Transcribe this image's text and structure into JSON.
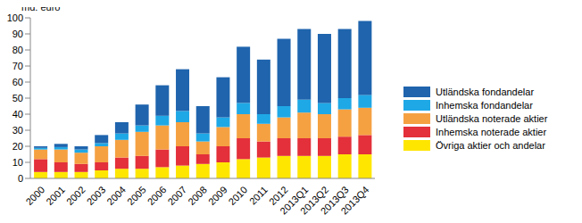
{
  "chart_data": {
    "type": "bar",
    "stacked": true,
    "y_label": "md. euro",
    "categories": [
      "2000",
      "2001",
      "2002",
      "2003",
      "2004",
      "2005",
      "2006",
      "2007",
      "2008",
      "2009",
      "2010",
      "2011",
      "2012",
      "2013Q1",
      "2013Q2",
      "2013Q3",
      "2013Q4"
    ],
    "series": [
      {
        "name": "Utländska fondandelar",
        "color": "#1f64ad",
        "values": [
          1,
          2,
          2,
          5,
          7,
          13,
          19,
          26,
          17,
          25,
          35,
          34,
          42,
          44,
          43,
          43,
          46
        ]
      },
      {
        "name": "Inhemska fondandelar",
        "color": "#1fa8e6",
        "values": [
          1,
          1.5,
          2,
          2,
          4,
          4,
          6,
          7,
          5,
          6,
          7,
          6,
          7,
          8,
          7,
          7,
          8
        ]
      },
      {
        "name": "Utländska noterade aktier",
        "color": "#f5a142",
        "values": [
          6,
          8,
          7,
          10,
          11,
          15,
          15,
          15,
          8,
          12,
          15,
          11,
          13,
          16,
          15,
          17,
          17
        ]
      },
      {
        "name": "Inhemska noterade aktier",
        "color": "#e3303a",
        "values": [
          8,
          6,
          5,
          5,
          7,
          8,
          11,
          12,
          6,
          10,
          13,
          10,
          11,
          11,
          11,
          11,
          12
        ]
      },
      {
        "name": "Övriga aktier och andelar",
        "color": "#ffe600",
        "values": [
          4,
          4,
          4,
          5,
          6,
          6,
          7,
          8,
          9,
          10,
          12,
          13,
          14,
          14,
          14,
          15,
          15
        ]
      }
    ],
    "ylim": [
      0,
      100
    ],
    "yticks": [
      0,
      10,
      20,
      30,
      40,
      50,
      60,
      70,
      80,
      90,
      100
    ],
    "grid": false,
    "legend": "right"
  }
}
